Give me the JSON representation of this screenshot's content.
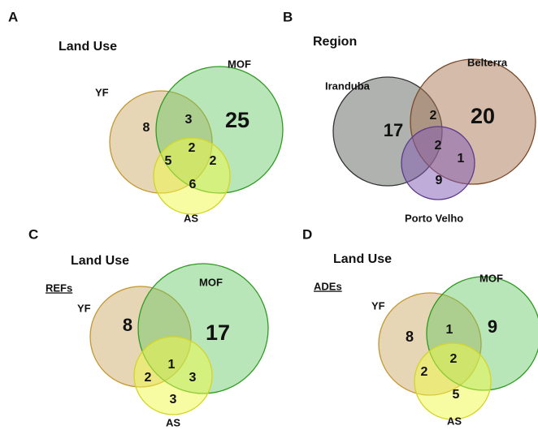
{
  "panels": [
    {
      "letter": "A",
      "title": "Land Use",
      "sets": [
        "YF",
        "MOF",
        "AS"
      ],
      "regions": [
        8,
        3,
        25,
        2,
        5,
        2,
        6
      ]
    },
    {
      "letter": "B",
      "title": "Region",
      "sets": [
        "Iranduba",
        "Belterra",
        "Porto Velho"
      ],
      "regions": [
        17,
        2,
        20,
        2,
        1,
        9
      ]
    },
    {
      "letter": "C",
      "title": "Land Use",
      "subtitle": "REFs",
      "sets": [
        "YF",
        "MOF",
        "AS"
      ],
      "regions": [
        8,
        17,
        1,
        2,
        3,
        3
      ]
    },
    {
      "letter": "D",
      "title": "Land Use",
      "subtitle": "ADEs",
      "sets": [
        "YF",
        "MOF",
        "AS"
      ],
      "regions": [
        8,
        1,
        9,
        2,
        2,
        5
      ]
    }
  ]
}
